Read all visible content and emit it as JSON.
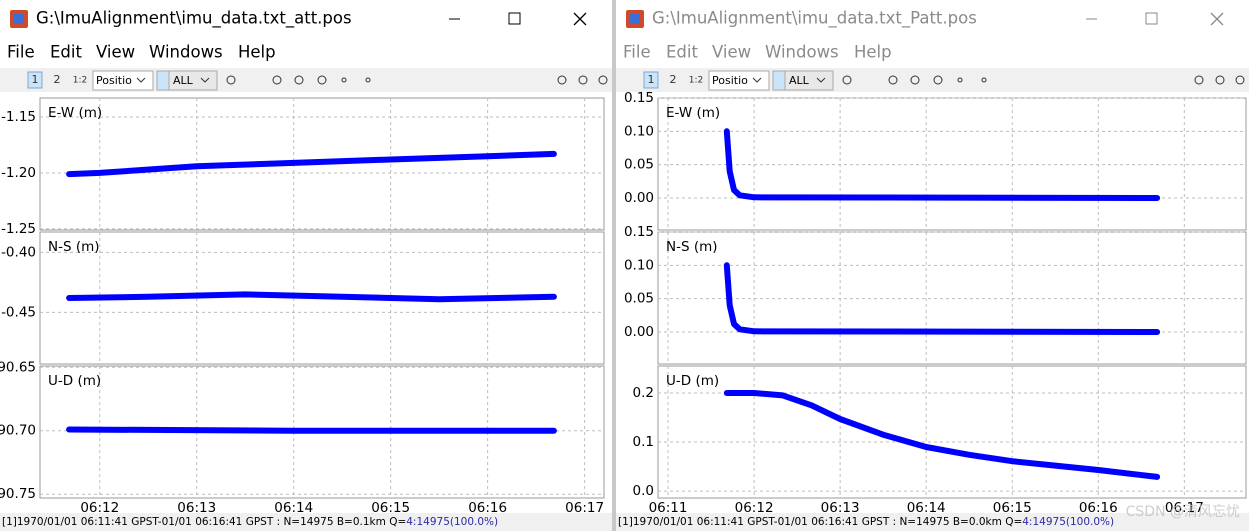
{
  "windows": [
    {
      "title": "G:\\ImuAlignment\\imu_data.txt_att.pos",
      "menu": [
        "File",
        "Edit",
        "View",
        "Windows",
        "Help"
      ],
      "toolbar": {
        "tabs": [
          "1",
          "2",
          "1:2"
        ],
        "plot_type": "Positio",
        "satellites": "ALL"
      },
      "xlim": [
        "06:11:23",
        "06:17:12"
      ],
      "xticks": [
        "06:12",
        "06:13",
        "06:14",
        "06:15",
        "06:16",
        "06:17"
      ],
      "plots": [
        {
          "label": "E-W (m)",
          "ylim": [
            -1.251,
            -1.133
          ],
          "yticks": [
            -1.15,
            {
              "value": -1.2,
              "label": "-1.20"
            },
            -1.25
          ],
          "color": "#0000ff",
          "x": [
            "06:11:41",
            "06:12:00",
            "06:13:00",
            "06:14:00",
            "06:15:00",
            "06:16:00",
            "06:16:41"
          ],
          "values": [
            -1.201,
            -1.2,
            -1.194,
            -1.191,
            -1.188,
            -1.185,
            -1.183
          ]
        },
        {
          "label": "N-S (m)",
          "ylim": [
            -0.493,
            -0.383
          ],
          "yticks": [
            {
              "value": -0.4,
              "label": "-0.40"
            },
            -0.45
          ],
          "color": "#0000ff",
          "x": [
            "06:11:41",
            "06:12:30",
            "06:13:30",
            "06:14:30",
            "06:15:30",
            "06:16:41"
          ],
          "values": [
            -0.438,
            -0.437,
            -0.435,
            -0.437,
            -0.439,
            -0.437
          ]
        },
        {
          "label": "U-D (m)",
          "ylim": [
            90.753,
            90.649
          ],
          "yticks": [
            90.65,
            {
              "value": 90.7,
              "label": "90.70"
            },
            90.75
          ],
          "color": "#0000ff",
          "x": [
            "06:11:41",
            "06:14:00",
            "06:16:41"
          ],
          "values": [
            90.699,
            90.7,
            90.7
          ]
        }
      ],
      "status": {
        "text": "[1]1970/01/01 06:11:41 GPST-01/01 06:16:41 GPST : N=14975 B=0.1km Q=",
        "quality": "4:14975(100.0%)"
      }
    },
    {
      "title": "G:\\ImuAlignment\\imu_data.txt_Patt.pos",
      "menu": [
        "File",
        "Edit",
        "View",
        "Windows",
        "Help"
      ],
      "toolbar": {
        "tabs": [
          "1",
          "2",
          "1:2"
        ],
        "plot_type": "Positio",
        "satellites": "ALL"
      },
      "xlim": [
        "06:10:53",
        "06:17:43"
      ],
      "xticks": [
        "06:11",
        "06:12",
        "06:13",
        "06:14",
        "06:15",
        "06:16",
        "06:17"
      ],
      "plots": [
        {
          "label": "E-W (m)",
          "ylim": [
            -0.048,
            0.15
          ],
          "yticks": [
            0.15,
            {
              "value": 0.1,
              "label": "0.10"
            },
            0.05,
            {
              "value": 0,
              "label": "0.00"
            }
          ],
          "color": "#0000ff",
          "x": [
            "06:11:41",
            "06:11:43",
            "06:11:46",
            "06:11:50",
            "06:12:00",
            "06:16:41"
          ],
          "values": [
            0.1,
            0.04,
            0.012,
            0.004,
            0.001,
            0
          ]
        },
        {
          "label": "N-S (m)",
          "ylim": [
            -0.048,
            0.15
          ],
          "yticks": [
            0.15,
            {
              "value": 0.1,
              "label": "0.10"
            },
            0.05,
            {
              "value": 0,
              "label": "0.00"
            }
          ],
          "color": "#0000ff",
          "x": [
            "06:11:41",
            "06:11:43",
            "06:11:46",
            "06:11:50",
            "06:12:00",
            "06:16:41"
          ],
          "values": [
            0.1,
            0.04,
            0.012,
            0.004,
            0.001,
            0
          ]
        },
        {
          "label": "U-D (m)",
          "ylim": [
            -0.014,
            0.255
          ],
          "yticks": [
            0.2,
            0.1,
            {
              "value": 0,
              "label": "0.0"
            }
          ],
          "color": "#0000ff",
          "x": [
            "06:11:41",
            "06:12:00",
            "06:12:20",
            "06:12:40",
            "06:13:00",
            "06:13:30",
            "06:14:00",
            "06:14:30",
            "06:15:00",
            "06:15:30",
            "06:16:00",
            "06:16:41"
          ],
          "values": [
            0.2,
            0.2,
            0.195,
            0.175,
            0.147,
            0.115,
            0.09,
            0.074,
            0.061,
            0.052,
            0.043,
            0.029
          ]
        }
      ],
      "status": {
        "text": "[1]1970/01/01 06:11:41 GPST-01/01 06:16:41 GPST : N=14975 B=0.0km Q=",
        "quality": "4:14975(100.0%)"
      }
    }
  ],
  "watermark": "CSDN @清风忘忧"
}
